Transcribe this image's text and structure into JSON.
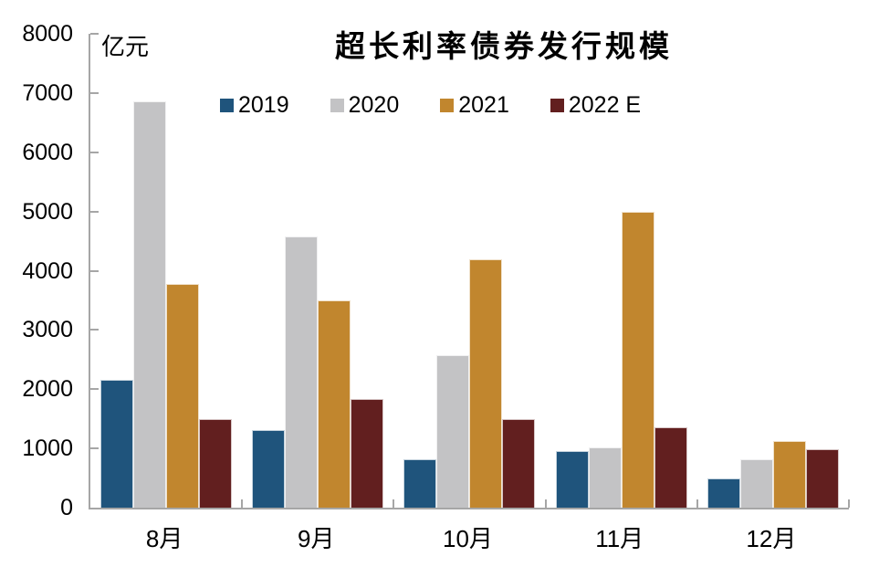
{
  "chart_data": {
    "type": "bar",
    "title": "超长利率债券发行规模",
    "unit_label": "亿元",
    "categories": [
      "8月",
      "9月",
      "10月",
      "11月",
      "12月"
    ],
    "series": [
      {
        "name": "2019",
        "color": "#1F547C",
        "values": [
          2160,
          1310,
          820,
          950,
          500
        ]
      },
      {
        "name": "2020",
        "color": "#C3C3C5",
        "values": [
          6860,
          4580,
          2570,
          1010,
          820
        ]
      },
      {
        "name": "2021",
        "color": "#C1862E",
        "values": [
          3780,
          3500,
          4200,
          5000,
          1130
        ]
      },
      {
        "name": "2022 E",
        "color": "#621F1F",
        "values": [
          1490,
          1840,
          1490,
          1360,
          990
        ]
      }
    ],
    "ylim": [
      0,
      8000
    ],
    "yticks": [
      0,
      1000,
      2000,
      3000,
      4000,
      5000,
      6000,
      7000,
      8000
    ],
    "grid": false,
    "legend_position": "top",
    "axis_color": "#A6A6A6",
    "text_color": "#000000",
    "background_color": "#FFFFFF"
  }
}
